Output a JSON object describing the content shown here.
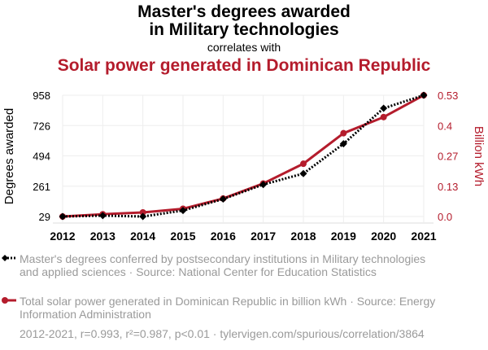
{
  "title_line1": "Master's degrees awarded",
  "title_line2": "in Military technologies",
  "correlates_with": "correlates with",
  "title_line3": "Solar power generated in Dominican Republic",
  "colors": {
    "series1": "#000000",
    "series2": "#b41c2c",
    "legend_text": "#9a9a9a"
  },
  "legend": [
    "Master's degrees conferred by postsecondary institutions in Military technologies and applied sciences · Source: National Center for Education Statistics",
    "Total solar power generated in Dominican Republic in billion kWh · Source: Energy Information Administration"
  ],
  "footer": "2012-2021, r=0.993, r²=0.987, p<0.01 · tylervigen.com/spurious/correlation/3864",
  "chart_data": {
    "type": "line",
    "x": [
      2012,
      2013,
      2014,
      2015,
      2016,
      2017,
      2018,
      2019,
      2020,
      2021
    ],
    "xlabel": "",
    "ylabel_left": "Degrees awarded",
    "ylabel_right": "Billion kWh",
    "yticks_left": [
      "29",
      "261",
      "494",
      "726",
      "958"
    ],
    "yticks_right": [
      "0.0",
      "0.13",
      "0.27",
      "0.4",
      "0.53"
    ],
    "ylim_left": [
      29,
      958
    ],
    "ylim_right": [
      0,
      0.533
    ],
    "grid": true,
    "series": [
      {
        "name": "Master's degrees conferred by postsecondary institutions in Military technologies and applied sciences",
        "axis": "left",
        "style": "dotted",
        "marker": "diamond",
        "values": [
          29,
          36,
          29,
          75,
          163,
          274,
          358,
          586,
          858,
          958
        ]
      },
      {
        "name": "Total solar power generated in Dominican Republic in billion kWh",
        "axis": "right",
        "style": "solid",
        "marker": "circle",
        "values": [
          0.0,
          0.01,
          0.018,
          0.034,
          0.079,
          0.145,
          0.232,
          0.366,
          0.437,
          0.533
        ]
      }
    ]
  }
}
